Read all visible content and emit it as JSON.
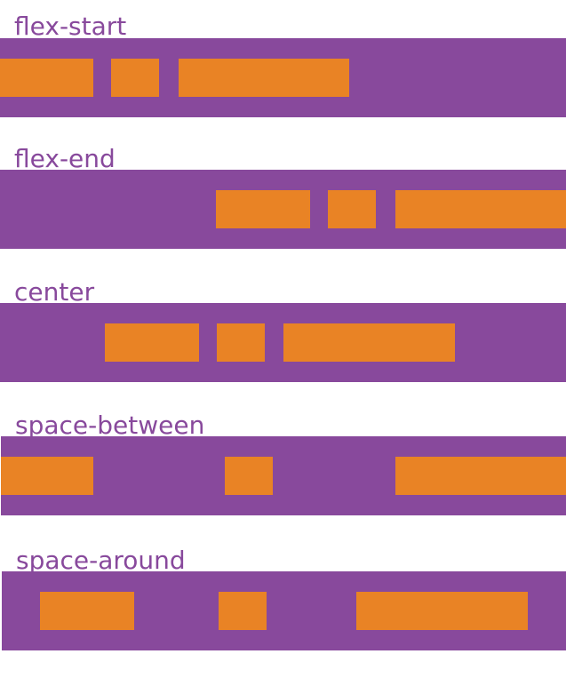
{
  "colors": {
    "container": "#88499c",
    "item": "#e98325"
  },
  "rows": [
    {
      "label": "flex-start"
    },
    {
      "label": "flex-end"
    },
    {
      "label": "center"
    },
    {
      "label": "space-between"
    },
    {
      "label": "space-around"
    }
  ]
}
